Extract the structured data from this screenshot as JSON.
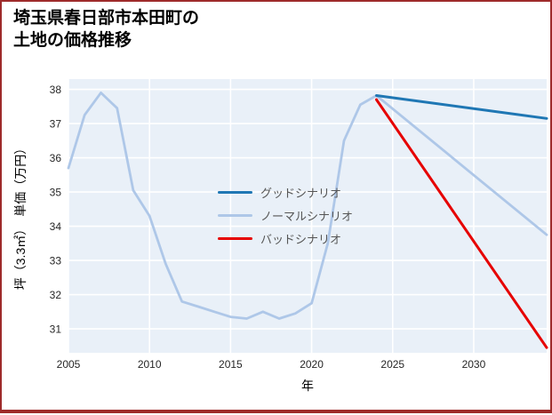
{
  "page": {
    "background": "#ffffff",
    "border_color": "#9e2b2b"
  },
  "chart_data": {
    "type": "line",
    "title": "埼玉県春日部市本田町の土地の価格推移",
    "title_lines": [
      "埼玉県春日部市本田町の",
      "土地の価格推移"
    ],
    "xlabel": "年",
    "ylabel": "坪（3.3㎡）　単価（万円）",
    "plot_background": "#e9f0f8",
    "grid_color": "#ffffff",
    "grid": true,
    "xlim": [
      2005,
      2034.5
    ],
    "ylim": [
      30.3,
      38.3
    ],
    "xticks": [
      2005,
      2010,
      2015,
      2020,
      2025,
      2030
    ],
    "yticks": [
      31,
      32,
      33,
      34,
      35,
      36,
      37,
      38
    ],
    "legend_position": "center-left",
    "series": [
      {
        "key": "good",
        "name": "グッドシナリオ",
        "color": "#1f77b4",
        "width": 3,
        "x": [
          2024,
          2034.5
        ],
        "y": [
          37.82,
          37.15
        ]
      },
      {
        "key": "normal",
        "name": "ノーマルシナリオ",
        "color": "#aec7e8",
        "width": 2.8,
        "x": [
          2005,
          2006,
          2007,
          2008,
          2009,
          2010,
          2011,
          2012,
          2013,
          2014,
          2015,
          2016,
          2017,
          2018,
          2019,
          2020,
          2021,
          2022,
          2023,
          2024,
          2034.5
        ],
        "y": [
          35.7,
          37.25,
          37.9,
          37.45,
          35.05,
          34.3,
          32.9,
          31.8,
          31.65,
          31.5,
          31.35,
          31.3,
          31.5,
          31.3,
          31.45,
          31.75,
          33.5,
          36.5,
          37.55,
          37.82,
          33.75
        ]
      },
      {
        "key": "bad",
        "name": "バッドシナリオ",
        "color": "#e60000",
        "width": 3,
        "x": [
          2024,
          2034.5
        ],
        "y": [
          37.7,
          30.45
        ]
      }
    ]
  }
}
